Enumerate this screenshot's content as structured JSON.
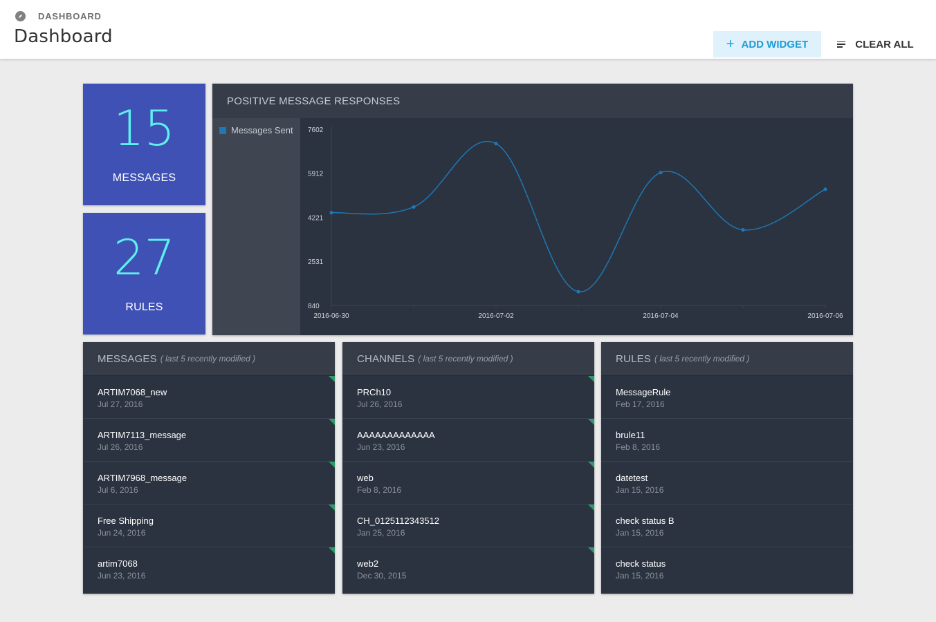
{
  "header": {
    "breadcrumb": "DASHBOARD",
    "title": "Dashboard",
    "add_widget_label": "ADD WIDGET",
    "clear_all_label": "CLEAR ALL",
    "accent_color": "#1e9bd7"
  },
  "tiles": [
    {
      "value": "15",
      "label": "MESSAGES",
      "color": "#3f51b5"
    },
    {
      "value": "27",
      "label": "RULES",
      "color": "#3f51b5"
    }
  ],
  "chart": {
    "title": "POSITIVE MESSAGE RESPONSES"
  },
  "chart_data": {
    "type": "line",
    "title": "POSITIVE MESSAGE RESPONSES",
    "x": [
      "2016-06-30",
      "2016-07-01",
      "2016-07-02",
      "2016-07-03",
      "2016-07-04",
      "2016-07-05",
      "2016-07-06"
    ],
    "x_tick_labels": [
      "2016-06-30",
      "2016-07-02",
      "2016-07-04",
      "2016-07-06"
    ],
    "y_ticks": [
      "7602",
      "5912",
      "4221",
      "2531",
      "840"
    ],
    "ylim": [
      840,
      7602
    ],
    "series": [
      {
        "name": "Messages Sent",
        "color": "#1f77b4",
        "values": [
          4400,
          4620,
          7050,
          1370,
          5940,
          3740,
          5300
        ]
      }
    ],
    "legend_position": "left",
    "grid": false,
    "curve": "smooth"
  },
  "lists": {
    "messages": {
      "title": "MESSAGES",
      "subtitle": "( last 5 recently modified )",
      "items": [
        {
          "name": "ARTIM7068_new",
          "date": "Jul 27, 2016"
        },
        {
          "name": "ARTIM7113_message",
          "date": "Jul 26, 2016"
        },
        {
          "name": "ARTIM7968_message",
          "date": "Jul 6, 2016"
        },
        {
          "name": "Free Shipping",
          "date": "Jun 24, 2016"
        },
        {
          "name": "artim7068",
          "date": "Jun 23, 2016"
        }
      ]
    },
    "channels": {
      "title": "CHANNELS",
      "subtitle": "( last 5 recently modified )",
      "items": [
        {
          "name": "PRCh10",
          "date": "Jul 26, 2016"
        },
        {
          "name": "AAAAAAAAAAAAA",
          "date": "Jun 23, 2016"
        },
        {
          "name": "web",
          "date": "Feb 8, 2016"
        },
        {
          "name": "CH_0125112343512",
          "date": "Jan 25, 2016"
        },
        {
          "name": "web2",
          "date": "Dec 30, 2015"
        }
      ]
    },
    "rules": {
      "title": "RULES",
      "subtitle": "( last 5 recently modified )",
      "items": [
        {
          "name": "MessageRule",
          "date": "Feb 17, 2016"
        },
        {
          "name": "brule11",
          "date": "Feb 8, 2016"
        },
        {
          "name": "datetest",
          "date": "Jan 15, 2016"
        },
        {
          "name": "check status B",
          "date": "Jan 15, 2016"
        },
        {
          "name": "check status",
          "date": "Jan 15, 2016"
        }
      ]
    }
  }
}
